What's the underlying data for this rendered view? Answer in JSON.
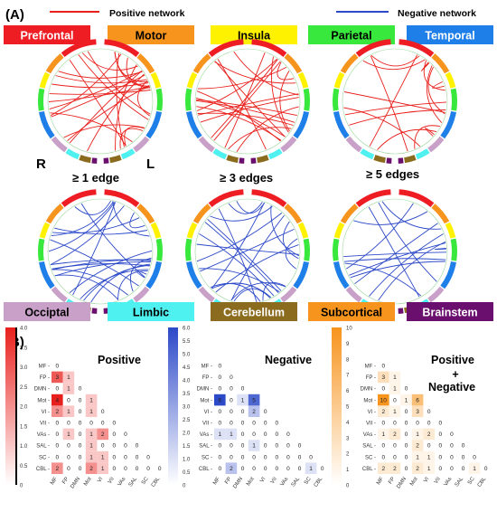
{
  "panel_a": {
    "letter": "(A)",
    "legend_positive": "Positive network",
    "legend_negative": "Negative network",
    "positive_color": "#e8201c",
    "negative_color": "#2c49c8",
    "regions_top": [
      {
        "name": "Prefrontal",
        "color": "#ee1c23",
        "text": "#ffffff"
      },
      {
        "name": "Motor",
        "color": "#f7941d",
        "text": "#000000"
      },
      {
        "name": "Insula",
        "color": "#fff200",
        "text": "#000000"
      },
      {
        "name": "Parietal",
        "color": "#39e83c",
        "text": "#000000"
      },
      {
        "name": "Temporal",
        "color": "#1e7fe8",
        "text": "#ffffff"
      }
    ],
    "regions_bottom": [
      {
        "name": "Occiptal",
        "color": "#c8a0c8",
        "text": "#000000"
      },
      {
        "name": "Limbic",
        "color": "#4ff0f0",
        "text": "#000000"
      },
      {
        "name": "Cerebellum",
        "color": "#8b6b1d",
        "text": "#ffffff"
      },
      {
        "name": "Subcortical",
        "color": "#f7941d",
        "text": "#000000"
      },
      {
        "name": "Brainstem",
        "color": "#6b0f6e",
        "text": "#ffffff"
      }
    ],
    "hemisphere_right": "R",
    "hemisphere_left": "L",
    "thresholds": [
      "≥ 1 edge",
      "≥ 3 edges",
      "≥ 5 edges"
    ]
  },
  "panel_b": {
    "letter": "(B)",
    "network_labels": [
      "MF",
      "FP",
      "DMN",
      "Mot",
      "VI",
      "VII",
      "VAs",
      "SAL",
      "SC",
      "CBL"
    ],
    "matrices": [
      {
        "title": "Positive",
        "color": "#e8201c",
        "colorbar_max": 4,
        "colorbar_ticks": [
          "4.0",
          "3.5",
          "3.0",
          "2.5",
          "2.0",
          "1.5",
          "1.0",
          "0.5",
          "0"
        ],
        "values": [
          [
            0
          ],
          [
            3,
            1
          ],
          [
            0,
            1,
            0
          ],
          [
            4,
            0,
            0,
            1
          ],
          [
            2,
            1,
            0,
            1,
            0
          ],
          [
            0,
            0,
            0,
            0,
            0,
            0
          ],
          [
            0,
            1,
            0,
            1,
            2,
            0,
            0
          ],
          [
            0,
            0,
            0,
            1,
            0,
            0,
            0,
            0
          ],
          [
            0,
            0,
            0,
            1,
            1,
            0,
            0,
            0,
            0
          ],
          [
            2,
            0,
            0,
            2,
            1,
            0,
            0,
            0,
            0,
            0
          ]
        ]
      },
      {
        "title": "Negative",
        "color": "#2c49c8",
        "colorbar_max": 6,
        "colorbar_ticks": [
          "6.0",
          "5.5",
          "5.0",
          "4.5",
          "4.0",
          "3.5",
          "3.0",
          "2.5",
          "2.0",
          "1.5",
          "1.0",
          "0.5",
          "0"
        ],
        "values": [
          [
            0
          ],
          [
            0,
            0
          ],
          [
            0,
            0,
            0
          ],
          [
            6,
            0,
            1,
            5
          ],
          [
            0,
            0,
            0,
            2,
            0
          ],
          [
            0,
            0,
            0,
            0,
            0,
            0
          ],
          [
            1,
            1,
            0,
            0,
            0,
            0,
            0
          ],
          [
            0,
            0,
            0,
            1,
            0,
            0,
            0,
            0
          ],
          [
            0,
            0,
            0,
            0,
            0,
            0,
            0,
            0,
            0
          ],
          [
            0,
            2,
            0,
            0,
            0,
            0,
            0,
            0,
            1,
            0
          ]
        ]
      },
      {
        "title": "Positive",
        "title_plus": "+",
        "title_line2": "Negative",
        "color": "#f7941d",
        "colorbar_max": 10,
        "colorbar_ticks": [
          "10",
          "9",
          "8",
          "7",
          "6",
          "5",
          "4",
          "3",
          "2",
          "1",
          "0"
        ],
        "values": [
          [
            0
          ],
          [
            3,
            1
          ],
          [
            0,
            1,
            0
          ],
          [
            10,
            0,
            1,
            6
          ],
          [
            2,
            1,
            0,
            3,
            0
          ],
          [
            0,
            0,
            0,
            0,
            0,
            0
          ],
          [
            1,
            2,
            0,
            1,
            2,
            0,
            0
          ],
          [
            0,
            0,
            0,
            2,
            0,
            0,
            0,
            0
          ],
          [
            0,
            0,
            0,
            1,
            1,
            0,
            0,
            0,
            0
          ],
          [
            2,
            2,
            0,
            2,
            1,
            0,
            0,
            0,
            1,
            0
          ]
        ]
      }
    ]
  }
}
